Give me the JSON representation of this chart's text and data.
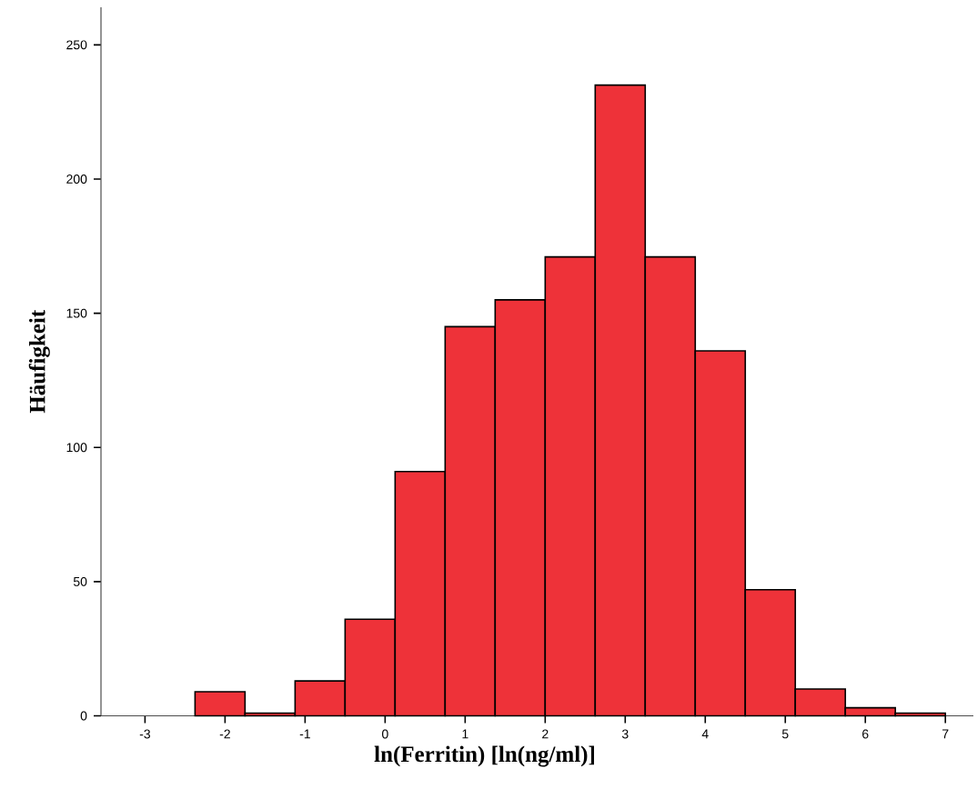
{
  "chart_data": {
    "type": "histogram",
    "xlabel": "ln(Ferritin) [ln(ng/ml)]",
    "ylabel": "Häufigkeit",
    "bins": [
      -2.375,
      -1.75,
      -1.125,
      -0.5,
      0.125,
      0.75,
      1.375,
      2.0,
      2.625,
      3.25,
      3.875,
      4.5,
      5.125,
      5.75,
      6.375,
      7.0
    ],
    "values": [
      9,
      1,
      13,
      36,
      91,
      145,
      155,
      171,
      235,
      171,
      136,
      47,
      10,
      3,
      1
    ],
    "color": "#ee3239",
    "xlim": [
      -3.55,
      7.35
    ],
    "ylim": [
      0,
      264
    ],
    "xticks": [
      -3,
      -2,
      -1,
      0,
      1,
      2,
      3,
      4,
      5,
      6,
      7
    ],
    "yticks": [
      0,
      50,
      100,
      150,
      200,
      250
    ]
  }
}
